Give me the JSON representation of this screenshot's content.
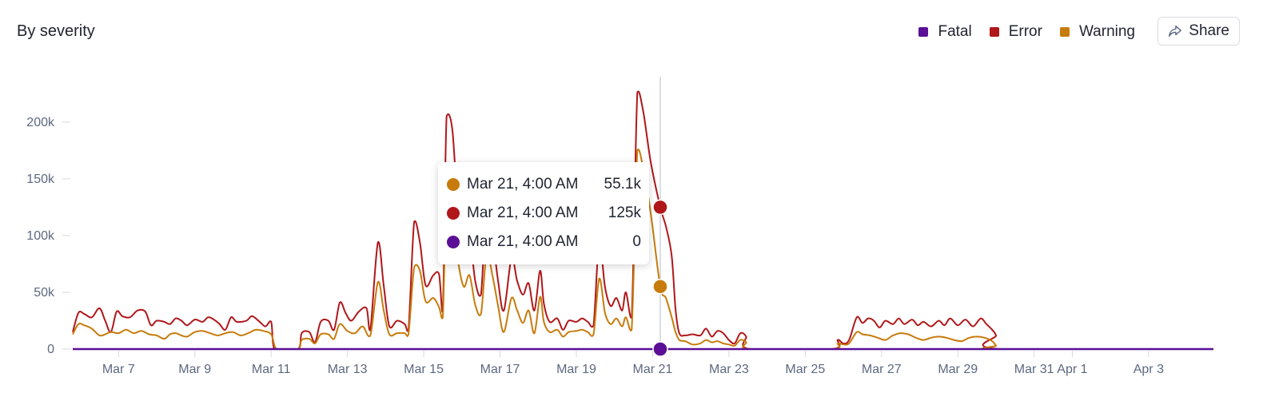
{
  "header": {
    "title": "By severity",
    "share_label": "Share",
    "share_icon": "share-arrow-icon"
  },
  "legend": [
    {
      "label": "Fatal",
      "color": "#5b0f96"
    },
    {
      "label": "Error",
      "color": "#b0171a"
    },
    {
      "label": "Warning",
      "color": "#c77b0c"
    }
  ],
  "tooltip": [
    {
      "series": "Warning",
      "time": "Mar 21, 4:00 AM",
      "value": "55.1k",
      "color": "#c77b0c"
    },
    {
      "series": "Error",
      "time": "Mar 21, 4:00 AM",
      "value": "125k",
      "color": "#b0171a"
    },
    {
      "series": "Fatal",
      "time": "Mar 21, 4:00 AM",
      "value": "0",
      "color": "#5b0f96"
    }
  ],
  "chart_data": {
    "type": "line",
    "xlabel": "",
    "ylabel": "",
    "ylim": [
      0,
      240000
    ],
    "xlim": [
      "Mar 6",
      "Apr 4"
    ],
    "grid": false,
    "legend_position": "top-right",
    "y_ticks": [
      {
        "value": 0,
        "label": "0"
      },
      {
        "value": 50000,
        "label": "50k"
      },
      {
        "value": 100000,
        "label": "100k"
      },
      {
        "value": 150000,
        "label": "150k"
      },
      {
        "value": 200000,
        "label": "200k"
      }
    ],
    "x_ticks": [
      {
        "day": 7,
        "label": "Mar 7"
      },
      {
        "day": 9,
        "label": "Mar 9"
      },
      {
        "day": 11,
        "label": "Mar 11"
      },
      {
        "day": 13,
        "label": "Mar 13"
      },
      {
        "day": 15,
        "label": "Mar 15"
      },
      {
        "day": 17,
        "label": "Mar 17"
      },
      {
        "day": 19,
        "label": "Mar 19"
      },
      {
        "day": 21,
        "label": "Mar 21"
      },
      {
        "day": 23,
        "label": "Mar 23"
      },
      {
        "day": 25,
        "label": "Mar 25"
      },
      {
        "day": 27,
        "label": "Mar 27"
      },
      {
        "day": 29,
        "label": "Mar 29"
      },
      {
        "day": 31,
        "label": "Mar 31"
      },
      {
        "day": 32,
        "label": "Apr 1"
      },
      {
        "day": 34,
        "label": "Apr 3"
      }
    ],
    "x_unit_note_days": "day of March; 32 = Apr 1",
    "hover": {
      "day": 21.2,
      "label": "Mar 21, 4:00 AM"
    },
    "series": [
      {
        "name": "Error",
        "color": "#b0171a",
        "points": [
          [
            5.8,
            15000
          ],
          [
            5.95,
            32000
          ],
          [
            6.1,
            31000
          ],
          [
            6.3,
            28000
          ],
          [
            6.5,
            36000
          ],
          [
            6.65,
            25000
          ],
          [
            6.8,
            15000
          ],
          [
            6.95,
            33000
          ],
          [
            7.1,
            29000
          ],
          [
            7.3,
            28000
          ],
          [
            7.5,
            34000
          ],
          [
            7.7,
            33000
          ],
          [
            7.85,
            21000
          ],
          [
            8.0,
            25000
          ],
          [
            8.2,
            24000
          ],
          [
            8.35,
            22000
          ],
          [
            8.5,
            27000
          ],
          [
            8.65,
            25000
          ],
          [
            8.8,
            21000
          ],
          [
            9.0,
            26000
          ],
          [
            9.2,
            24000
          ],
          [
            9.35,
            28000
          ],
          [
            9.5,
            26000
          ],
          [
            9.65,
            22000
          ],
          [
            9.8,
            17000
          ],
          [
            9.95,
            28000
          ],
          [
            10.1,
            24000
          ],
          [
            10.35,
            25000
          ],
          [
            10.5,
            29000
          ],
          [
            10.7,
            24000
          ],
          [
            10.85,
            20000
          ],
          [
            11.0,
            24000
          ],
          [
            11.05,
            5000
          ],
          [
            11.15,
            0
          ],
          [
            11.7,
            0
          ],
          [
            11.8,
            14000
          ],
          [
            12.0,
            15000
          ],
          [
            12.15,
            6000
          ],
          [
            12.3,
            24000
          ],
          [
            12.5,
            25000
          ],
          [
            12.65,
            17000
          ],
          [
            12.8,
            41000
          ],
          [
            12.95,
            32000
          ],
          [
            13.1,
            25000
          ],
          [
            13.3,
            33000
          ],
          [
            13.5,
            36000
          ],
          [
            13.6,
            17000
          ],
          [
            13.8,
            94000
          ],
          [
            13.95,
            56000
          ],
          [
            14.1,
            20000
          ],
          [
            14.3,
            25000
          ],
          [
            14.5,
            22000
          ],
          [
            14.6,
            17000
          ],
          [
            14.75,
            112000
          ],
          [
            14.9,
            94000
          ],
          [
            15.05,
            56000
          ],
          [
            15.25,
            65000
          ],
          [
            15.4,
            66000
          ],
          [
            15.5,
            33000
          ],
          [
            15.6,
            205000
          ],
          [
            15.75,
            193000
          ],
          [
            15.9,
            120000
          ],
          [
            16.05,
            85000
          ],
          [
            16.2,
            100000
          ],
          [
            16.35,
            60000
          ],
          [
            16.5,
            48000
          ],
          [
            16.65,
            128000
          ],
          [
            16.8,
            100000
          ],
          [
            16.95,
            60000
          ],
          [
            17.1,
            34000
          ],
          [
            17.3,
            80000
          ],
          [
            17.45,
            60000
          ],
          [
            17.6,
            48000
          ],
          [
            17.75,
            58000
          ],
          [
            17.9,
            34000
          ],
          [
            18.05,
            69000
          ],
          [
            18.15,
            40000
          ],
          [
            18.3,
            24000
          ],
          [
            18.5,
            27000
          ],
          [
            18.65,
            17000
          ],
          [
            18.8,
            25000
          ],
          [
            19.0,
            24000
          ],
          [
            19.15,
            27000
          ],
          [
            19.3,
            24000
          ],
          [
            19.45,
            21000
          ],
          [
            19.6,
            95000
          ],
          [
            19.75,
            55000
          ],
          [
            19.9,
            38000
          ],
          [
            20.05,
            45000
          ],
          [
            20.2,
            34000
          ],
          [
            20.3,
            50000
          ],
          [
            20.45,
            28000
          ],
          [
            20.6,
            226000
          ],
          [
            20.75,
            210000
          ],
          [
            20.95,
            165000
          ],
          [
            21.2,
            125000
          ],
          [
            21.35,
            108000
          ],
          [
            21.5,
            82000
          ],
          [
            21.6,
            35000
          ],
          [
            21.7,
            14000
          ],
          [
            21.85,
            12000
          ],
          [
            22.05,
            13000
          ],
          [
            22.25,
            12000
          ],
          [
            22.4,
            18000
          ],
          [
            22.55,
            11000
          ],
          [
            22.7,
            16000
          ],
          [
            22.85,
            14000
          ],
          [
            23.0,
            8000
          ],
          [
            23.15,
            5000
          ],
          [
            23.3,
            14000
          ],
          [
            23.45,
            11000
          ],
          [
            23.55,
            0
          ],
          [
            25.7,
            0
          ],
          [
            25.85,
            8000
          ],
          [
            26.0,
            5000
          ],
          [
            26.15,
            8000
          ],
          [
            26.35,
            28000
          ],
          [
            26.5,
            23000
          ],
          [
            26.65,
            27000
          ],
          [
            26.8,
            25000
          ],
          [
            26.95,
            19000
          ],
          [
            27.1,
            25000
          ],
          [
            27.3,
            22000
          ],
          [
            27.45,
            27000
          ],
          [
            27.6,
            22000
          ],
          [
            27.8,
            26000
          ],
          [
            27.95,
            21000
          ],
          [
            28.1,
            24000
          ],
          [
            28.3,
            20000
          ],
          [
            28.5,
            25000
          ],
          [
            28.65,
            21000
          ],
          [
            28.8,
            27000
          ],
          [
            29.0,
            21000
          ],
          [
            29.2,
            26000
          ],
          [
            29.4,
            20000
          ],
          [
            29.6,
            27000
          ],
          [
            29.75,
            22000
          ],
          [
            29.9,
            17000
          ],
          [
            30.0,
            12000
          ],
          [
            30.1,
            0
          ],
          [
            35.7,
            0
          ]
        ]
      },
      {
        "name": "Warning",
        "color": "#c77b0c",
        "points": [
          [
            5.8,
            13000
          ],
          [
            5.95,
            22000
          ],
          [
            6.1,
            21000
          ],
          [
            6.3,
            18000
          ],
          [
            6.5,
            12000
          ],
          [
            6.65,
            13000
          ],
          [
            6.8,
            15000
          ],
          [
            7.0,
            14000
          ],
          [
            7.2,
            17000
          ],
          [
            7.4,
            14000
          ],
          [
            7.6,
            16000
          ],
          [
            7.8,
            13000
          ],
          [
            8.0,
            12000
          ],
          [
            8.2,
            9000
          ],
          [
            8.35,
            13000
          ],
          [
            8.5,
            14000
          ],
          [
            8.65,
            12000
          ],
          [
            8.8,
            11000
          ],
          [
            9.0,
            15000
          ],
          [
            9.2,
            16000
          ],
          [
            9.4,
            14000
          ],
          [
            9.6,
            12000
          ],
          [
            9.8,
            14000
          ],
          [
            10.0,
            15000
          ],
          [
            10.2,
            12000
          ],
          [
            10.4,
            14000
          ],
          [
            10.6,
            17000
          ],
          [
            10.8,
            16000
          ],
          [
            11.0,
            13000
          ],
          [
            11.1,
            2000
          ],
          [
            11.2,
            0
          ],
          [
            11.7,
            0
          ],
          [
            11.8,
            8000
          ],
          [
            12.0,
            9000
          ],
          [
            12.15,
            5000
          ],
          [
            12.3,
            13000
          ],
          [
            12.5,
            13000
          ],
          [
            12.65,
            9000
          ],
          [
            12.8,
            22000
          ],
          [
            13.0,
            16000
          ],
          [
            13.2,
            14000
          ],
          [
            13.4,
            20000
          ],
          [
            13.6,
            12000
          ],
          [
            13.8,
            59000
          ],
          [
            13.95,
            34000
          ],
          [
            14.1,
            13000
          ],
          [
            14.3,
            14000
          ],
          [
            14.5,
            14000
          ],
          [
            14.6,
            13000
          ],
          [
            14.75,
            72000
          ],
          [
            14.9,
            69000
          ],
          [
            15.05,
            42000
          ],
          [
            15.25,
            45000
          ],
          [
            15.4,
            37000
          ],
          [
            15.5,
            28000
          ],
          [
            15.6,
            133000
          ],
          [
            15.75,
            124000
          ],
          [
            15.9,
            78000
          ],
          [
            16.05,
            55000
          ],
          [
            16.2,
            65000
          ],
          [
            16.35,
            39000
          ],
          [
            16.5,
            31000
          ],
          [
            16.65,
            84000
          ],
          [
            16.8,
            65000
          ],
          [
            16.95,
            38000
          ],
          [
            17.1,
            15000
          ],
          [
            17.3,
            45000
          ],
          [
            17.45,
            34000
          ],
          [
            17.6,
            23000
          ],
          [
            17.75,
            34000
          ],
          [
            17.9,
            14000
          ],
          [
            18.05,
            46000
          ],
          [
            18.15,
            24000
          ],
          [
            18.3,
            15000
          ],
          [
            18.5,
            17000
          ],
          [
            18.65,
            11000
          ],
          [
            18.8,
            15000
          ],
          [
            19.0,
            16000
          ],
          [
            19.15,
            17000
          ],
          [
            19.3,
            15000
          ],
          [
            19.45,
            13000
          ],
          [
            19.6,
            62000
          ],
          [
            19.75,
            32000
          ],
          [
            19.9,
            22000
          ],
          [
            20.05,
            27000
          ],
          [
            20.2,
            20000
          ],
          [
            20.3,
            28000
          ],
          [
            20.45,
            17000
          ],
          [
            20.6,
            175000
          ],
          [
            20.75,
            160000
          ],
          [
            20.95,
            120000
          ],
          [
            21.2,
            55100
          ],
          [
            21.35,
            45000
          ],
          [
            21.5,
            28000
          ],
          [
            21.6,
            15000
          ],
          [
            21.7,
            8000
          ],
          [
            21.85,
            7000
          ],
          [
            22.05,
            4000
          ],
          [
            22.25,
            5000
          ],
          [
            22.4,
            8000
          ],
          [
            22.55,
            6000
          ],
          [
            22.7,
            7000
          ],
          [
            22.85,
            5000
          ],
          [
            23.0,
            4000
          ],
          [
            23.15,
            3000
          ],
          [
            23.3,
            8000
          ],
          [
            23.45,
            6000
          ],
          [
            23.55,
            0
          ],
          [
            25.7,
            0
          ],
          [
            25.85,
            5000
          ],
          [
            26.0,
            4000
          ],
          [
            26.15,
            5000
          ],
          [
            26.35,
            15000
          ],
          [
            26.5,
            13000
          ],
          [
            26.7,
            12000
          ],
          [
            26.9,
            10000
          ],
          [
            27.1,
            8000
          ],
          [
            27.3,
            12000
          ],
          [
            27.5,
            14000
          ],
          [
            27.7,
            13000
          ],
          [
            27.9,
            10000
          ],
          [
            28.1,
            8000
          ],
          [
            28.3,
            10000
          ],
          [
            28.5,
            11000
          ],
          [
            28.7,
            10000
          ],
          [
            28.9,
            8000
          ],
          [
            29.1,
            7000
          ],
          [
            29.3,
            10000
          ],
          [
            29.5,
            11000
          ],
          [
            29.7,
            10000
          ],
          [
            29.9,
            7000
          ],
          [
            30.0,
            3000
          ],
          [
            30.1,
            0
          ],
          [
            35.7,
            0
          ]
        ]
      },
      {
        "name": "Fatal",
        "color": "#5b0f96",
        "points": [
          [
            5.8,
            0
          ],
          [
            35.7,
            0
          ]
        ]
      }
    ]
  }
}
